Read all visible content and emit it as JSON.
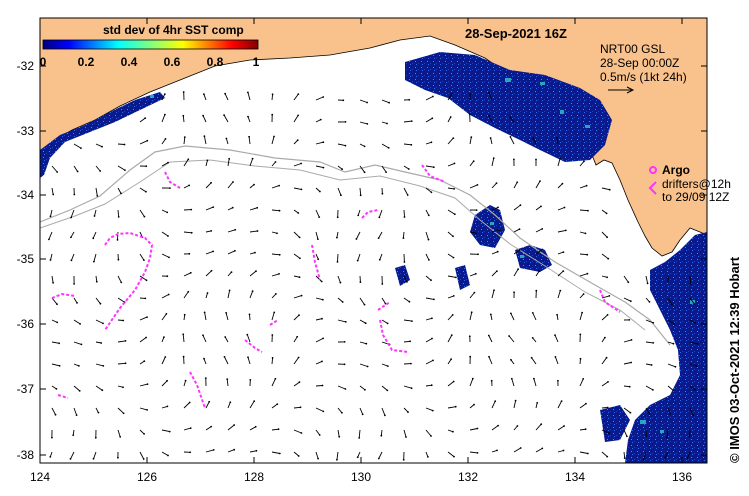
{
  "map": {
    "title": "28-Sep-2021 16Z",
    "side_label": "© IMOS 03-Oct-2021 12:39 Hobart",
    "colorbar": {
      "label": "std dev of 4hr SST comp",
      "ticks": [
        "0",
        "0.2",
        "0.4",
        "0.6",
        "0.8",
        "1"
      ]
    },
    "current_legend": {
      "line1": "NRT00 GSL",
      "line2": "28-Sep 00:00Z",
      "line3": "0.5m/s (1kt 24h)"
    },
    "argo_legend": {
      "label": "Argo",
      "line1": "drifters@12h",
      "line2": "to 29/09 12Z"
    },
    "x_ticks": [
      "124",
      "126",
      "128",
      "130",
      "132",
      "134",
      "136"
    ],
    "y_ticks": [
      "-32",
      "-33",
      "-34",
      "-35",
      "-36",
      "-37",
      "-38"
    ],
    "colors": {
      "land": "#f9c28c",
      "sst_low": "#0a1a8c",
      "argo": "#ff33ff",
      "shelf": "#aaaaaa"
    }
  }
}
